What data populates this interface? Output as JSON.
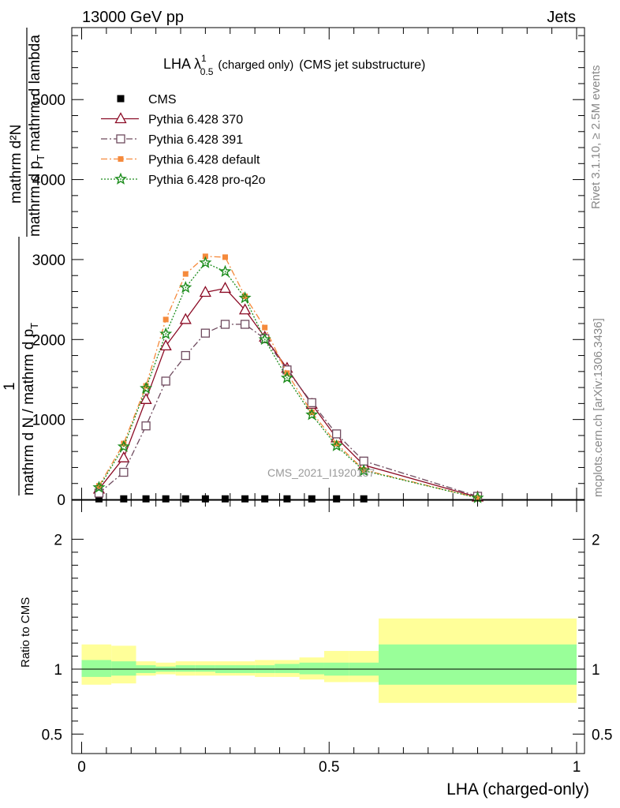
{
  "header": {
    "left": "13000 GeV pp",
    "right": "Jets"
  },
  "side_labels": {
    "rivet": "Rivet 3.1.10, ≥ 2.5M events",
    "mcplots": "mcplots.cern.ch [arXiv:1306.3436]"
  },
  "watermark": "CMS_2021_I1920187",
  "chart_data": [
    {
      "type": "line",
      "panel": "main",
      "title": "LHA λ",
      "title_sup": "1",
      "title_sub": "0.5",
      "title_suffix_small": "(charged only)",
      "title_suffix": "(CMS jet substructure)",
      "ylabel_top": "mathrm d²N",
      "ylabel_top_den": "mathrm d p",
      "ylabel_top_den_sub": "T",
      "ylabel_top_den_tail": "mathrm d lambda",
      "ylabel_one": "1",
      "ylabel_bottom": "mathrm d N / mathrm d p",
      "ylabel_bottom_sub": "T",
      "xlim": [
        0,
        1
      ],
      "ylim": [
        0,
        5900
      ],
      "yticks": [
        0,
        1000,
        2000,
        3000,
        4000,
        5000
      ],
      "ytick_labels": [
        "0",
        "1000",
        "2000",
        "3000",
        "4000",
        "5000"
      ],
      "legend_placement": "top-left",
      "series": [
        {
          "name": "CMS",
          "color": "#000000",
          "marker": "filled-square",
          "x": [
            0.035,
            0.085,
            0.13,
            0.17,
            0.21,
            0.25,
            0.29,
            0.33,
            0.37,
            0.415,
            0.465,
            0.515,
            0.57
          ],
          "y": [
            8,
            8,
            8,
            8,
            8,
            8,
            8,
            8,
            8,
            8,
            8,
            8,
            8
          ]
        },
        {
          "name": "Pythia 6.428 370",
          "color": "#8b0a24",
          "marker": "open-triangle",
          "dash": "",
          "x": [
            0.035,
            0.085,
            0.13,
            0.17,
            0.21,
            0.25,
            0.29,
            0.33,
            0.37,
            0.415,
            0.465,
            0.515,
            0.57,
            0.8
          ],
          "y": [
            130,
            520,
            1250,
            1920,
            2250,
            2590,
            2640,
            2370,
            2030,
            1640,
            1190,
            770,
            430,
            30
          ]
        },
        {
          "name": "Pythia 6.428 391",
          "color": "#6e4a5e",
          "marker": "open-square",
          "dash": "8,3,2,3",
          "x": [
            0.035,
            0.085,
            0.13,
            0.17,
            0.21,
            0.25,
            0.29,
            0.33,
            0.37,
            0.415,
            0.465,
            0.515,
            0.57,
            0.8
          ],
          "y": [
            80,
            340,
            920,
            1480,
            1800,
            2080,
            2190,
            2190,
            2010,
            1620,
            1210,
            820,
            480,
            40
          ]
        },
        {
          "name": "Pythia 6.428 default",
          "color": "#f58a3c",
          "marker": "filled-square-small",
          "dash": "8,3,2,3",
          "x": [
            0.035,
            0.085,
            0.13,
            0.17,
            0.21,
            0.25,
            0.29,
            0.33,
            0.37,
            0.415,
            0.465,
            0.515,
            0.57,
            0.8
          ],
          "y": [
            170,
            700,
            1420,
            2250,
            2820,
            3040,
            3030,
            2540,
            2150,
            1580,
            1090,
            700,
            370,
            20
          ]
        },
        {
          "name": "Pythia 6.428 pro-q2o",
          "color": "#1c8c1c",
          "marker": "open-star",
          "dash": "2,2",
          "x": [
            0.035,
            0.085,
            0.13,
            0.17,
            0.21,
            0.25,
            0.29,
            0.33,
            0.37,
            0.415,
            0.465,
            0.515,
            0.57,
            0.8
          ],
          "y": [
            150,
            660,
            1390,
            2070,
            2650,
            2960,
            2850,
            2520,
            2000,
            1520,
            1060,
            670,
            360,
            20
          ]
        }
      ]
    },
    {
      "type": "area",
      "panel": "ratio",
      "ylabel": "Ratio to CMS",
      "xlabel": "LHA (charged-only)",
      "xlim": [
        0,
        1
      ],
      "ylim": [
        0.35,
        2.3
      ],
      "xticks": [
        0,
        0.5,
        1
      ],
      "xtick_labels": [
        "0",
        "0.5",
        "1"
      ],
      "yticks": [
        0.5,
        1,
        2
      ],
      "ytick_labels": [
        "0.5",
        "1",
        "2"
      ],
      "reference_line": 1,
      "bands": [
        {
          "x0": 0.0,
          "x1": 0.06,
          "yellow": [
            0.88,
            1.19
          ],
          "green": [
            0.94,
            1.07
          ]
        },
        {
          "x0": 0.06,
          "x1": 0.11,
          "yellow": [
            0.89,
            1.18
          ],
          "green": [
            0.95,
            1.06
          ]
        },
        {
          "x0": 0.11,
          "x1": 0.15,
          "yellow": [
            0.95,
            1.06
          ],
          "green": [
            0.97,
            1.03
          ]
        },
        {
          "x0": 0.15,
          "x1": 0.19,
          "yellow": [
            0.96,
            1.05
          ],
          "green": [
            0.98,
            1.02
          ]
        },
        {
          "x0": 0.19,
          "x1": 0.23,
          "yellow": [
            0.95,
            1.06
          ],
          "green": [
            0.98,
            1.03
          ]
        },
        {
          "x0": 0.23,
          "x1": 0.27,
          "yellow": [
            0.95,
            1.06
          ],
          "green": [
            0.98,
            1.03
          ]
        },
        {
          "x0": 0.27,
          "x1": 0.31,
          "yellow": [
            0.95,
            1.06
          ],
          "green": [
            0.97,
            1.03
          ]
        },
        {
          "x0": 0.31,
          "x1": 0.35,
          "yellow": [
            0.95,
            1.06
          ],
          "green": [
            0.97,
            1.03
          ]
        },
        {
          "x0": 0.35,
          "x1": 0.39,
          "yellow": [
            0.94,
            1.07
          ],
          "green": [
            0.97,
            1.03
          ]
        },
        {
          "x0": 0.39,
          "x1": 0.44,
          "yellow": [
            0.94,
            1.07
          ],
          "green": [
            0.97,
            1.04
          ]
        },
        {
          "x0": 0.44,
          "x1": 0.49,
          "yellow": [
            0.92,
            1.09
          ],
          "green": [
            0.96,
            1.05
          ]
        },
        {
          "x0": 0.49,
          "x1": 0.54,
          "yellow": [
            0.9,
            1.14
          ],
          "green": [
            0.95,
            1.05
          ]
        },
        {
          "x0": 0.54,
          "x1": 0.6,
          "yellow": [
            0.9,
            1.14
          ],
          "green": [
            0.95,
            1.05
          ]
        },
        {
          "x0": 0.6,
          "x1": 1.0,
          "yellow": [
            0.74,
            1.39
          ],
          "green": [
            0.88,
            1.19
          ]
        }
      ]
    }
  ],
  "colors": {
    "yellow_band": "#ffff99",
    "green_band": "#99ff99"
  }
}
